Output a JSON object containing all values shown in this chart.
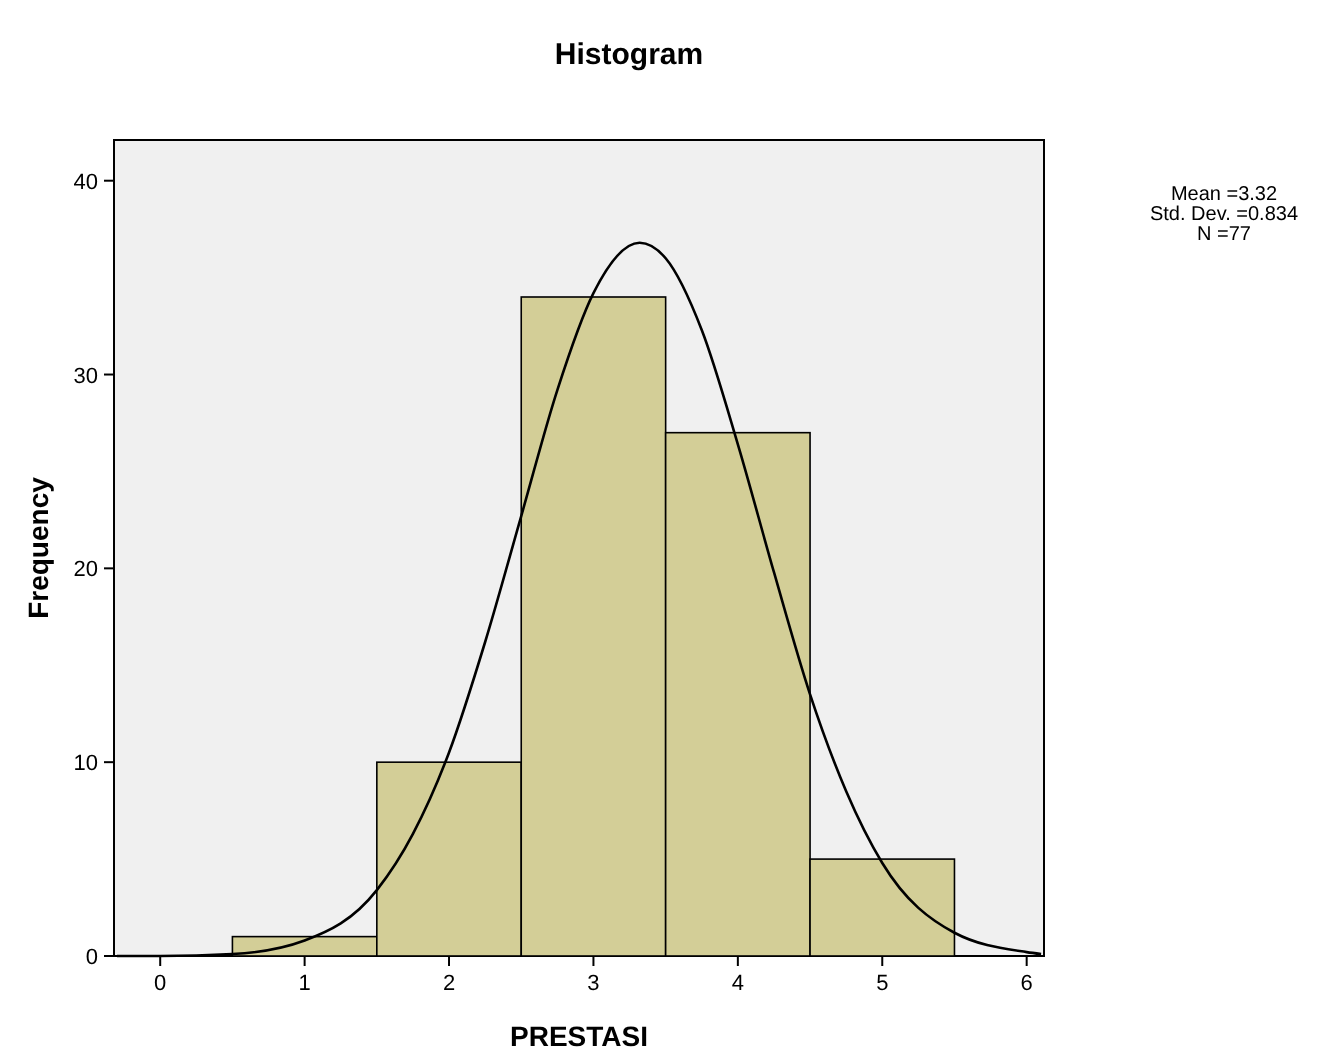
{
  "chart_data": {
    "type": "histogram",
    "title": "Histogram",
    "xlabel": "PRESTASI",
    "ylabel": "Frequency",
    "bins": [
      0.5,
      1.5,
      2.5,
      3.5,
      4.5,
      5.5
    ],
    "values": [
      1,
      10,
      34,
      27,
      5
    ],
    "color": "#d3ce97",
    "series": [
      {
        "type": "line",
        "color": "#000000",
        "marker": "none",
        "x": [
          -0.3,
          0,
          0.5,
          1,
          1.5,
          1.75,
          2,
          2.25,
          2.5,
          2.75,
          3,
          3.32,
          3.5,
          3.75,
          4,
          4.25,
          4.5,
          4.75,
          5,
          5.5,
          6,
          6.1
        ],
        "values": [
          0,
          0,
          0.1,
          0.8,
          3.4,
          6.3,
          10.5,
          16.2,
          22.7,
          29.2,
          34.2,
          36.8,
          36,
          32.3,
          26.4,
          19.8,
          13.5,
          8.5,
          4.8,
          1.2,
          0.2,
          0.1
        ]
      }
    ],
    "xlim": [
      -0.32,
      6.12
    ],
    "ylim": [
      0,
      42.1
    ],
    "xticks": [
      0,
      1,
      2,
      3,
      4,
      5,
      6
    ],
    "yticks": [
      0,
      10,
      20,
      30,
      40
    ],
    "grid": false,
    "annotations": [
      "Mean =3.32",
      "Std. Dev. =0.834",
      "N =77"
    ]
  }
}
